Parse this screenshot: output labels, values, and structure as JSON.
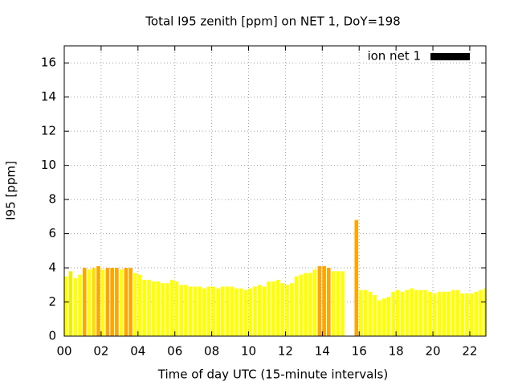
{
  "chart_data": {
    "type": "bar",
    "title": "Total I95 zenith [ppm] on NET 1, DoY=198",
    "xlabel": "Time of day UTC (15-minute intervals)",
    "ylabel": "I95 [ppm]",
    "x": [
      0,
      0.25,
      0.5,
      0.75,
      1,
      1.25,
      1.5,
      1.75,
      2,
      2.25,
      2.5,
      2.75,
      3,
      3.25,
      3.5,
      3.75,
      4,
      4.25,
      4.5,
      4.75,
      5,
      5.25,
      5.5,
      5.75,
      6,
      6.25,
      6.5,
      6.75,
      7,
      7.25,
      7.5,
      7.75,
      8,
      8.25,
      8.5,
      8.75,
      9,
      9.25,
      9.5,
      9.75,
      10,
      10.25,
      10.5,
      10.75,
      11,
      11.25,
      11.5,
      11.75,
      12,
      12.25,
      12.5,
      12.75,
      13,
      13.25,
      13.5,
      13.75,
      14,
      14.25,
      14.5,
      14.75,
      15,
      15.25,
      15.5,
      15.75,
      16,
      16.25,
      16.5,
      16.75,
      17,
      17.25,
      17.5,
      17.75,
      18,
      18.25,
      18.5,
      18.75,
      19,
      19.25,
      19.5,
      19.75,
      20,
      20.25,
      20.5,
      20.75,
      21,
      21.25,
      21.5,
      21.75,
      22,
      22.25,
      22.5,
      22.75
    ],
    "series": [
      {
        "name": "ion net 1",
        "color": "#000000",
        "values": [
          3.5,
          3.8,
          3.4,
          3.6,
          4.0,
          3.9,
          4.0,
          4.1,
          3.9,
          4.0,
          4.0,
          4.0,
          3.9,
          4.0,
          4.0,
          3.7,
          3.6,
          3.3,
          3.3,
          3.2,
          3.2,
          3.1,
          3.1,
          3.3,
          3.2,
          3.0,
          3.0,
          2.9,
          2.9,
          2.9,
          2.8,
          2.9,
          2.9,
          2.8,
          2.9,
          2.9,
          2.9,
          2.8,
          2.8,
          2.7,
          2.8,
          2.9,
          3.0,
          2.9,
          3.2,
          3.2,
          3.3,
          3.1,
          3.0,
          3.1,
          3.5,
          3.6,
          3.7,
          3.7,
          3.9,
          4.1,
          4.1,
          4.0,
          3.8,
          3.8,
          3.8,
          null,
          null,
          6.8,
          2.7,
          2.7,
          2.6,
          2.4,
          2.1,
          2.2,
          2.3,
          2.6,
          2.7,
          2.6,
          2.7,
          2.8,
          2.7,
          2.7,
          2.7,
          2.6,
          2.5,
          2.6,
          2.6,
          2.6,
          2.7,
          2.7,
          2.5,
          2.5,
          2.5,
          2.6,
          2.7,
          2.8
        ],
        "colors": [
          "#ffff00",
          "#eeee00",
          "#ffff00",
          "#ffff00",
          "#ffa500",
          "#ffff00",
          "#ffdd00",
          "#ffa500",
          "#ffff00",
          "#ffa500",
          "#ffa500",
          "#ffa500",
          "#ffff00",
          "#ffa500",
          "#ffa500",
          "#ffff00",
          "#ffff00",
          "#ffff00",
          "#ffff00",
          "#ffff00",
          "#ffff00",
          "#ffff00",
          "#ffff00",
          "#ffff00",
          "#ffff00",
          "#ffff00",
          "#ffff00",
          "#ffff00",
          "#ffff00",
          "#ffff00",
          "#ffff00",
          "#ffff00",
          "#ffff00",
          "#ffff00",
          "#ffff00",
          "#ffff00",
          "#ffff00",
          "#ffff00",
          "#ffff00",
          "#ffff00",
          "#ffff00",
          "#ffff00",
          "#ffff00",
          "#ffff00",
          "#ffff00",
          "#ffff00",
          "#ffff00",
          "#ffff00",
          "#ffff00",
          "#ffff00",
          "#ffff00",
          "#ffff00",
          "#ffff00",
          "#ffff00",
          "#ffff00",
          "#ffa500",
          "#ffa500",
          "#ffa500",
          "#ffff00",
          "#ffff00",
          "#ffff00",
          "#ffff00",
          "#ffff00",
          "#ffa500",
          "#ffff00",
          "#ffff00",
          "#ffff00",
          "#ffff00",
          "#ffff00",
          "#ffff00",
          "#ffff00",
          "#ffff00",
          "#ffff00",
          "#ffff00",
          "#ffff00",
          "#ffff00",
          "#ffff00",
          "#ffff00",
          "#ffff00",
          "#ffff00",
          "#ffff00",
          "#ffff00",
          "#ffff00",
          "#ffff00",
          "#ffff00",
          "#ffff00",
          "#ffff00",
          "#ffff00",
          "#ffff00",
          "#ffff00",
          "#ffff00",
          "#ffff00"
        ]
      }
    ],
    "xlim": [
      0,
      22.875
    ],
    "ylim": [
      0,
      17
    ],
    "xticks": [
      {
        "value": 0,
        "label": "00"
      },
      {
        "value": 2,
        "label": "02"
      },
      {
        "value": 4,
        "label": "04"
      },
      {
        "value": 6,
        "label": "06"
      },
      {
        "value": 8,
        "label": "08"
      },
      {
        "value": 10,
        "label": "10"
      },
      {
        "value": 12,
        "label": "12"
      },
      {
        "value": 14,
        "label": "14"
      },
      {
        "value": 16,
        "label": "16"
      },
      {
        "value": 18,
        "label": "18"
      },
      {
        "value": 20,
        "label": "20"
      },
      {
        "value": 22,
        "label": "22"
      }
    ],
    "yticks": [
      0,
      2,
      4,
      6,
      8,
      10,
      12,
      14,
      16
    ],
    "grid": true,
    "legend": "upper right"
  }
}
